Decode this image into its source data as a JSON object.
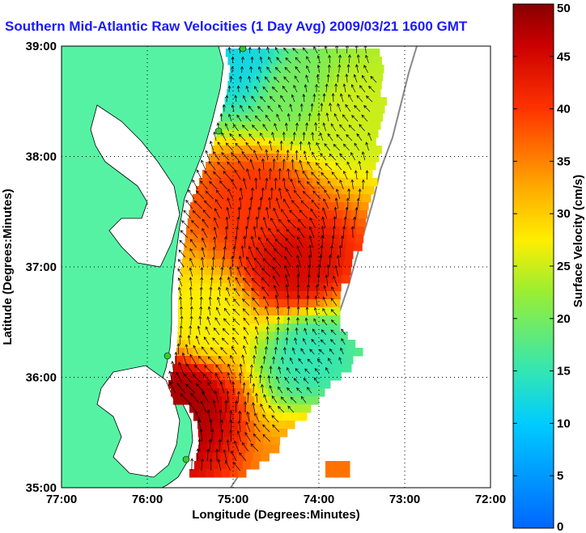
{
  "chart_data": {
    "type": "heatmap",
    "title": "Southern Mid-Atlantic Raw Velocities (1 Day Avg) 2009/03/21 1600 GMT",
    "xlabel": "Longitude (Degrees:Minutes)",
    "ylabel": "Latitude (Degrees:Minutes)",
    "xlim": [
      -77,
      -72
    ],
    "ylim": [
      35,
      39
    ],
    "x_ticks": [
      "77:00",
      "76:00",
      "75:00",
      "74:00",
      "73:00",
      "72:00"
    ],
    "y_ticks": [
      "35:00",
      "36:00",
      "37:00",
      "38:00",
      "39:00"
    ],
    "grid": true,
    "colorbar": {
      "label": "Surface Velocity (cm/s)",
      "range": [
        0,
        50
      ],
      "ticks": [
        "0",
        "5",
        "10",
        "15",
        "20",
        "25",
        "30",
        "35",
        "40",
        "45",
        "50"
      ]
    },
    "colors": {
      "land": "#55f2a4",
      "water": "#ffffff",
      "coastline": "#000000",
      "shelf_contour": "#888888",
      "station_marker": "#33cc33",
      "title": "#1a1aff"
    },
    "field": {
      "description_visible": false,
      "value_range": [
        5,
        50
      ],
      "regions": [
        {
          "lon": -74.9,
          "lat": 38.85,
          "speed": 12
        },
        {
          "lon": -74.3,
          "lat": 38.6,
          "speed": 20
        },
        {
          "lon": -73.7,
          "lat": 38.4,
          "speed": 25
        },
        {
          "lon": -74.7,
          "lat": 37.6,
          "speed": 40
        },
        {
          "lon": -74.3,
          "lat": 37.0,
          "speed": 45
        },
        {
          "lon": -75.3,
          "lat": 36.5,
          "speed": 27
        },
        {
          "lon": -74.1,
          "lat": 36.2,
          "speed": 15
        },
        {
          "lon": -75.6,
          "lat": 35.8,
          "speed": 48
        },
        {
          "lon": -73.9,
          "lat": 35.2,
          "speed": 35
        }
      ]
    }
  }
}
